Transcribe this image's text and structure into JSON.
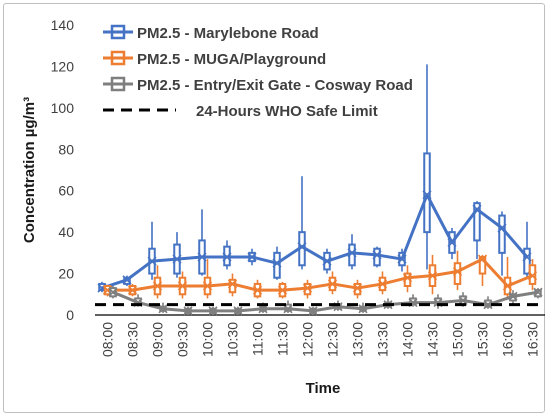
{
  "chart_data": {
    "type": "box",
    "ylabel": "Concentration µg/m³",
    "xlabel": "Time",
    "ylim": [
      0,
      140
    ],
    "yticks": [
      0,
      20,
      40,
      60,
      80,
      100,
      120,
      140
    ],
    "categories": [
      "08:00",
      "08:30",
      "09:00",
      "09:30",
      "10:00",
      "10:30",
      "11:00",
      "11:30",
      "12:00",
      "12:30",
      "13:00",
      "13:30",
      "14:00",
      "14:30",
      "15:00",
      "15:30",
      "16:00",
      "16:30"
    ],
    "grid": false,
    "legend_position": "top-left",
    "series": [
      {
        "name": "PM2.5 - Marylebone Road",
        "color": "#4472c4",
        "mean": [
          13,
          17,
          26,
          27,
          28,
          28,
          28,
          25,
          33,
          26,
          30,
          29,
          27,
          58,
          35,
          51,
          42,
          28
        ],
        "q1": [
          12,
          15,
          20,
          20,
          20,
          24,
          26,
          18,
          24,
          22,
          24,
          24,
          24,
          40,
          30,
          36,
          30,
          20
        ],
        "q3": [
          15,
          18,
          32,
          34,
          36,
          33,
          30,
          30,
          40,
          30,
          34,
          32,
          30,
          78,
          40,
          54,
          48,
          32
        ],
        "min": [
          11,
          14,
          17,
          18,
          19,
          22,
          24,
          17,
          22,
          20,
          22,
          23,
          21,
          22,
          27,
          27,
          19,
          18
        ],
        "max": [
          16,
          19,
          45,
          40,
          51,
          36,
          32,
          33,
          67,
          32,
          39,
          33,
          32,
          121,
          42,
          55,
          50,
          45
        ]
      },
      {
        "name": "PM2.5 - MUGA/Playground",
        "color": "#ed7d31",
        "mean": [
          12,
          12,
          14,
          14,
          14,
          15,
          12,
          12,
          13,
          15,
          13,
          15,
          18,
          19,
          21,
          27,
          14,
          19
        ],
        "q1": [
          10,
          10,
          10,
          10,
          10,
          11,
          9,
          9,
          10,
          12,
          10,
          12,
          14,
          14,
          15,
          20,
          10,
          15
        ],
        "q3": [
          14,
          14,
          18,
          18,
          18,
          17,
          15,
          15,
          15,
          18,
          15,
          18,
          20,
          24,
          25,
          28,
          18,
          24
        ],
        "min": [
          9,
          9,
          8,
          8,
          8,
          9,
          8,
          8,
          8,
          10,
          8,
          10,
          11,
          10,
          12,
          14,
          8,
          12
        ],
        "max": [
          14,
          15,
          24,
          21,
          27,
          20,
          17,
          16,
          17,
          21,
          17,
          21,
          24,
          29,
          31,
          29,
          28,
          27
        ]
      },
      {
        "name": "PM2.5 - Entry/Exit Gate - Cosway Road",
        "color": "#7f7f7f",
        "mean": [
          11,
          6,
          3,
          2,
          2,
          2,
          3,
          3,
          2,
          4,
          3,
          5,
          6,
          6,
          7,
          5,
          9,
          11
        ],
        "q1": [
          9,
          5,
          2,
          1,
          1,
          1,
          2,
          2,
          1,
          3,
          2,
          4,
          5,
          5,
          5,
          4,
          7,
          9
        ],
        "q3": [
          13,
          8,
          4,
          3,
          3,
          3,
          4,
          5,
          3,
          5,
          4,
          6,
          8,
          8,
          9,
          7,
          10,
          12
        ],
        "min": [
          8,
          4,
          1,
          0,
          0,
          0,
          1,
          1,
          0,
          2,
          1,
          3,
          4,
          3,
          4,
          3,
          5,
          8
        ],
        "max": [
          14,
          10,
          6,
          4,
          4,
          4,
          6,
          7,
          4,
          7,
          6,
          8,
          10,
          10,
          11,
          9,
          12,
          13
        ]
      }
    ],
    "reference_line": {
      "name": "24-Hours WHO Safe Limit",
      "value": 5,
      "color": "#000000",
      "style": "dashed"
    }
  }
}
